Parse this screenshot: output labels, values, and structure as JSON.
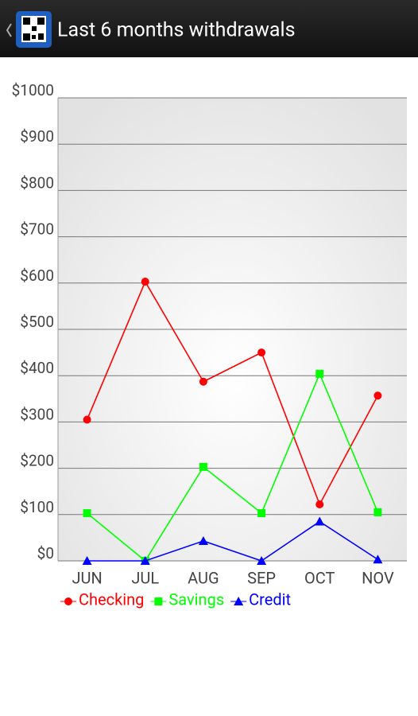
{
  "chart_data": {
    "type": "line",
    "title": "Last 6 months withdrawals",
    "categories": [
      "JUN",
      "JUL",
      "AUG",
      "SEP",
      "OCT",
      "NOV"
    ],
    "series": [
      {
        "name": "Checking",
        "color": "#ff0000",
        "marker": "circle",
        "values": [
          305,
          603,
          387,
          450,
          122,
          357
        ]
      },
      {
        "name": "Savings",
        "color": "#00ff00",
        "marker": "square",
        "values": [
          103,
          0,
          203,
          103,
          404,
          105
        ]
      },
      {
        "name": "Credit",
        "color": "#0000ff",
        "marker": "triangle",
        "values": [
          0,
          0,
          43,
          0,
          85,
          3
        ]
      }
    ],
    "ylim": [
      0,
      1000
    ],
    "yticks": [
      {
        "value": 0,
        "label": "$0"
      },
      {
        "value": 100,
        "label": "$100"
      },
      {
        "value": 200,
        "label": "$200"
      },
      {
        "value": 300,
        "label": "$300"
      },
      {
        "value": 400,
        "label": "$400"
      },
      {
        "value": 500,
        "label": "$500"
      },
      {
        "value": 600,
        "label": "$600"
      },
      {
        "value": 700,
        "label": "$700"
      },
      {
        "value": 800,
        "label": "$800"
      },
      {
        "value": 900,
        "label": "$900"
      },
      {
        "value": 1000,
        "label": "$1000"
      }
    ],
    "grid": true
  }
}
